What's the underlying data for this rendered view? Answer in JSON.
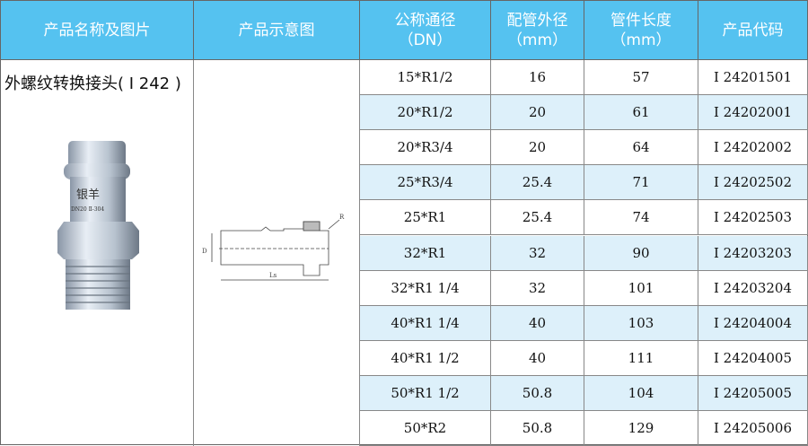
{
  "headers": [
    {
      "line1": "产品名称及图片",
      "line2": ""
    },
    {
      "line1": "产品示意图",
      "line2": ""
    },
    {
      "line1": "公称通径",
      "line2": "（DN）"
    },
    {
      "line1": "配管外径",
      "line2": "（mm）"
    },
    {
      "line1": "管件长度",
      "line2": "（mm）"
    },
    {
      "line1": "产品代码",
      "line2": ""
    }
  ],
  "product": {
    "name": "外螺纹转换接头( Ⅰ 242 )",
    "photo_marking": "银羊",
    "photo_sub": "DN20 Ⅱ-304"
  },
  "diagram": {
    "label_d": "D",
    "label_ls": "Ls",
    "label_r": "R"
  },
  "colors": {
    "header_bg": "#55c2f0",
    "alt_row": "#ddf0fa"
  },
  "rows": [
    [
      "15*R1/2",
      "16",
      "57",
      "Ⅰ 24201501"
    ],
    [
      "20*R1/2",
      "20",
      "61",
      "Ⅰ 24202001"
    ],
    [
      "20*R3/4",
      "20",
      "64",
      "Ⅰ 24202002"
    ],
    [
      "25*R3/4",
      "25.4",
      "71",
      "Ⅰ 24202502"
    ],
    [
      "25*R1",
      "25.4",
      "74",
      "Ⅰ 24202503"
    ],
    [
      "32*R1",
      "32",
      "90",
      "Ⅰ 24203203"
    ],
    [
      "32*R1 1/4",
      "32",
      "101",
      "Ⅰ 24203204"
    ],
    [
      "40*R1 1/4",
      "40",
      "103",
      "Ⅰ 24204004"
    ],
    [
      "40*R1 1/2",
      "40",
      "111",
      "Ⅰ 24204005"
    ],
    [
      "50*R1 1/2",
      "50.8",
      "104",
      "Ⅰ 24205005"
    ],
    [
      "50*R2",
      "50.8",
      "129",
      "Ⅰ 24205006"
    ]
  ]
}
